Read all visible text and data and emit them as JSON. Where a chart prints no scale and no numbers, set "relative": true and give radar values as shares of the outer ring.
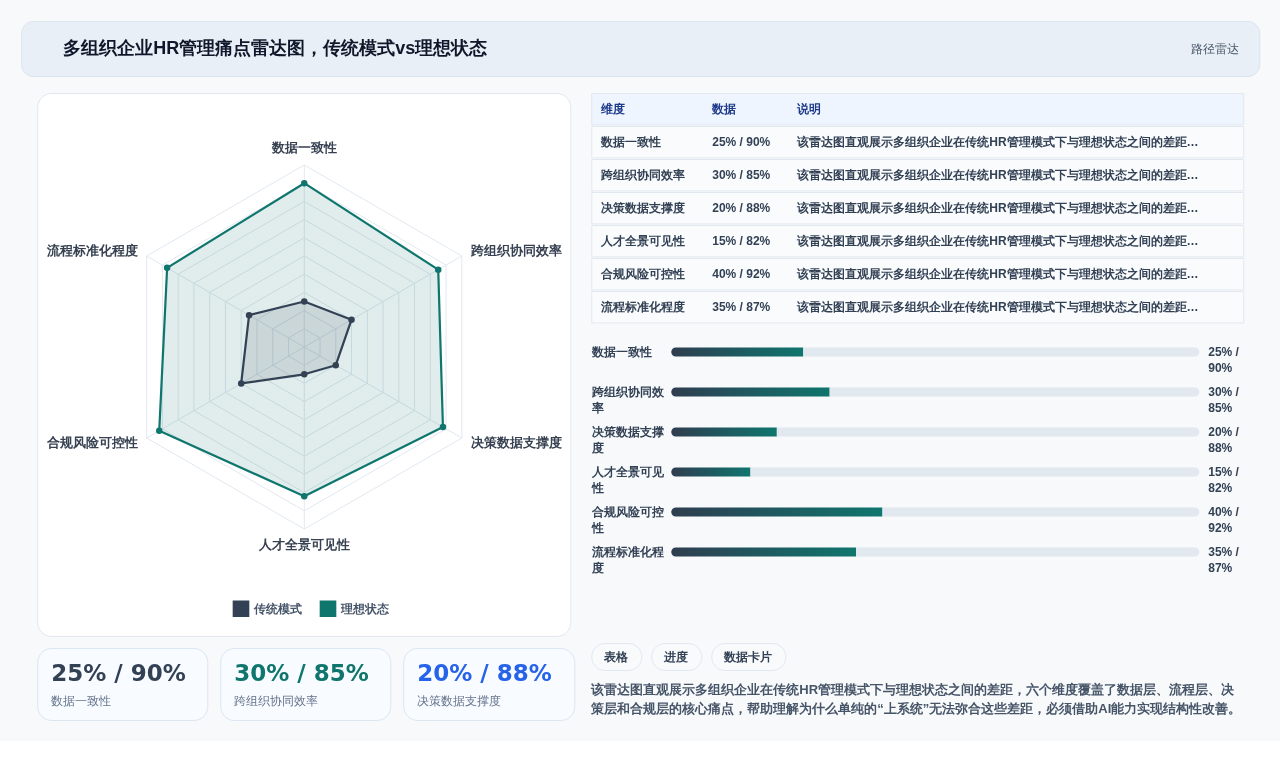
{
  "chart_data": [
    {
      "type": "other",
      "title": "多组织企业HR管理痛点雷达图，传统模式vs理想状态",
      "annotations": [
        "路径雷达"
      ]
    },
    {
      "type": "radar",
      "relative": true,
      "categories": [
        "数据一致性",
        "跨组织协同效率",
        "决策数据支撑度",
        "人才全景可见性",
        "合规风险可控性",
        "流程标准化程度"
      ],
      "series": [
        {
          "name": "传统模式",
          "color": "#334155",
          "values": [
            0.25,
            0.3,
            0.2,
            0.15,
            0.4,
            0.35
          ]
        },
        {
          "name": "理想状态",
          "color": "#0f766e",
          "values": [
            0.9,
            0.85,
            0.88,
            0.82,
            0.92,
            0.87
          ]
        }
      ],
      "grid": true,
      "legend": "bottom",
      "marker": "circle"
    },
    {
      "type": "other",
      "annotations": [
        "维度",
        "数据",
        "说明",
        "数据一致性",
        "25% / 90%",
        "该雷达图直观展示多组织企业在传统HR管理模式下与理想状态之间的差距…",
        "跨组织协同效率",
        "30% / 85%",
        "该雷达图直观展示多组织企业在传统HR管理模式下与理想状态之间的差距…",
        "决策数据支撑度",
        "20% / 88%",
        "该雷达图直观展示多组织企业在传统HR管理模式下与理想状态之间的差距…",
        "人才全景可见性",
        "15% / 82%",
        "该雷达图直观展示多组织企业在传统HR管理模式下与理想状态之间的差距…",
        "合规风险可控性",
        "40% / 92%",
        "该雷达图直观展示多组织企业在传统HR管理模式下与理想状态之间的差距…",
        "流程标准化程度",
        "35% / 87%",
        "该雷达图直观展示多组织企业在传统HR管理模式下与理想状态之间的差距…"
      ]
    },
    {
      "type": "bar",
      "orientation": "horizontal",
      "stacked": true,
      "categories": [
        "数据一致性",
        "跨组织协同效率",
        "决策数据支撑度",
        "人才全景可见性",
        "合规风险可控性",
        "流程标准化程度"
      ],
      "series": [
        {
          "color": "#0f766e",
          "values": [
            25,
            30,
            20,
            15,
            40,
            35
          ],
          "value_labels": [
            "25% / 90%",
            "30% / 85%",
            "20% / 88%",
            "15% / 82%",
            "40% / 92%",
            "35% / 87%"
          ]
        },
        {
          "color": "#e2e8f0",
          "values": [
            75,
            70,
            80,
            85,
            60,
            65
          ]
        }
      ],
      "xlim": [
        0,
        100
      ],
      "tick_labels": "y"
    },
    {
      "type": "other",
      "annotations": [
        "25% / 90%",
        "数据一致性",
        "30% / 85%",
        "跨组织协同效率",
        "20% / 88%",
        "决策数据支撑度"
      ],
      "colors": [
        "#334155",
        "#0f766e",
        "#2563eb"
      ]
    },
    {
      "type": "other",
      "annotations": [
        "表格",
        "进度",
        "数据卡片",
        "该雷达图直观展示多组织企业在传统HR管理模式下与理想状态之间的差距，六个维度覆盖了数据层、流程层、决策层和合规层的核心痛点，帮助理解为什么单纯的“上系统”无法弥合这些差距，必须借助AI能力实现结构性改善。"
      ]
    }
  ]
}
